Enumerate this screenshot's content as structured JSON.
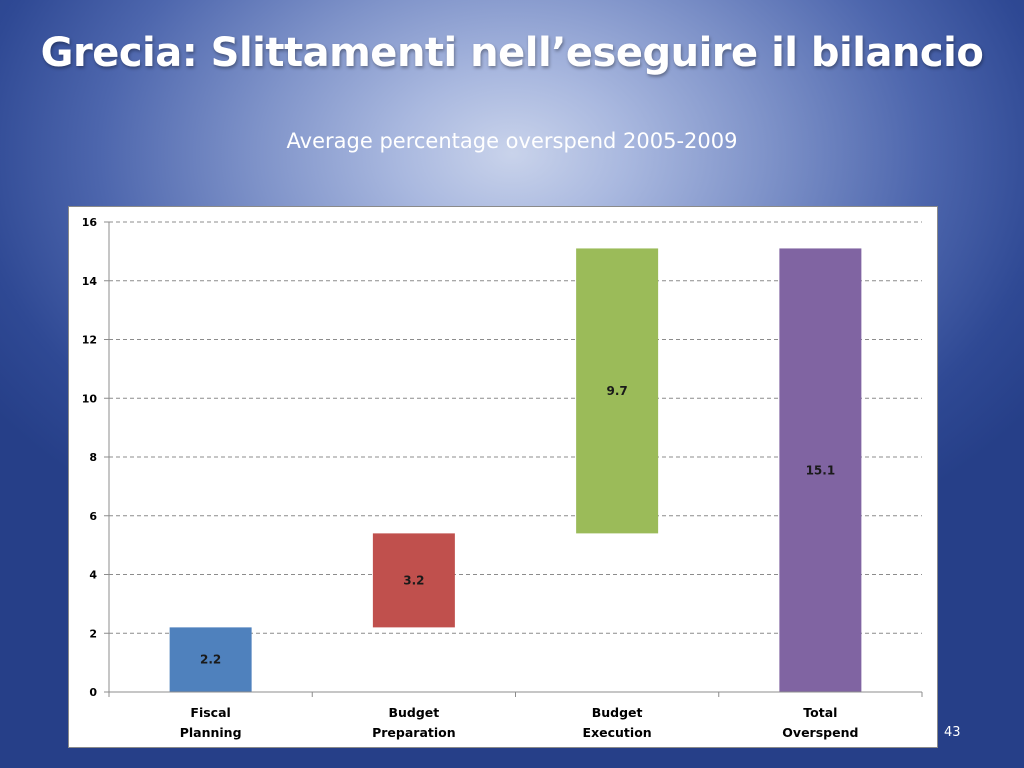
{
  "slide": {
    "title": "Grecia: Slittamenti nell’eseguire il bilancio",
    "page_number": "43"
  },
  "colors": {
    "background_center": "#c9d3eb",
    "background_edge": "#263f88",
    "grid": "#8c8c8c"
  },
  "chart_data": {
    "type": "bar",
    "subtype": "waterfall",
    "title": "Average percentage overspend 2005-2009",
    "xlabel": "",
    "ylabel": "",
    "ylim": [
      0,
      16
    ],
    "yticks": [
      0,
      2,
      4,
      6,
      8,
      10,
      12,
      14,
      16
    ],
    "grid": true,
    "grid_style": "dashed",
    "legend": "none",
    "categories": [
      [
        "Fiscal",
        "Planning"
      ],
      [
        "Budget",
        "Preparation"
      ],
      [
        "Budget",
        "Execution"
      ],
      [
        "Total",
        "Overspend"
      ]
    ],
    "bars": [
      {
        "start": 0.0,
        "end": 2.2,
        "value": 2.2,
        "label": "2.2",
        "color": "#4f81bd"
      },
      {
        "start": 2.2,
        "end": 5.4,
        "value": 3.2,
        "label": "3.2",
        "color": "#c0504d"
      },
      {
        "start": 5.4,
        "end": 15.1,
        "value": 9.7,
        "label": "9.7",
        "color": "#9bbb59"
      },
      {
        "start": 0.0,
        "end": 15.1,
        "value": 15.1,
        "label": "15.1",
        "color": "#8064a2"
      }
    ]
  }
}
